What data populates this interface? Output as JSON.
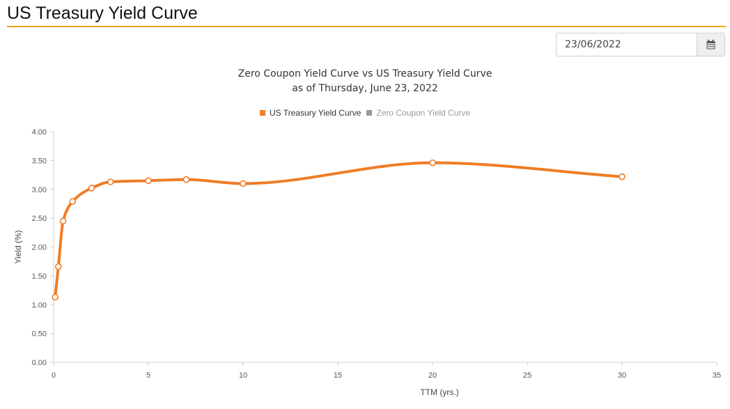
{
  "page": {
    "title": "US Treasury Yield Curve"
  },
  "date_picker": {
    "value": "23/06/2022",
    "icon": "calendar-icon"
  },
  "colors": {
    "series": "#f07c25",
    "inactive": "#999999",
    "accent": "#f0a500",
    "axis": "#cccccc"
  },
  "chart_data": {
    "type": "line",
    "title_line1": "Zero Coupon Yield Curve vs US Treasury Yield Curve",
    "title_line2": "as of Thursday, June 23, 2022",
    "xlabel": "TTM (yrs.)",
    "ylabel": "Yield (%)",
    "xlim": [
      0,
      35
    ],
    "ylim": [
      0,
      4
    ],
    "x_ticks": [
      "0",
      "5",
      "10",
      "15",
      "20",
      "25",
      "30",
      "35"
    ],
    "y_ticks": [
      "0.00",
      "0.50",
      "1.00",
      "1.50",
      "2.00",
      "2.50",
      "3.00",
      "3.50",
      "4.00"
    ],
    "legend": [
      {
        "name": "US Treasury Yield Curve",
        "active": true
      },
      {
        "name": "Zero Coupon Yield Curve",
        "active": false
      }
    ],
    "series": [
      {
        "name": "US Treasury Yield Curve",
        "x": [
          0.08,
          0.25,
          0.5,
          1,
          2,
          3,
          5,
          7,
          10,
          20,
          30
        ],
        "values": [
          1.13,
          1.66,
          2.45,
          2.79,
          3.02,
          3.13,
          3.15,
          3.17,
          3.1,
          3.46,
          3.22
        ]
      }
    ]
  }
}
